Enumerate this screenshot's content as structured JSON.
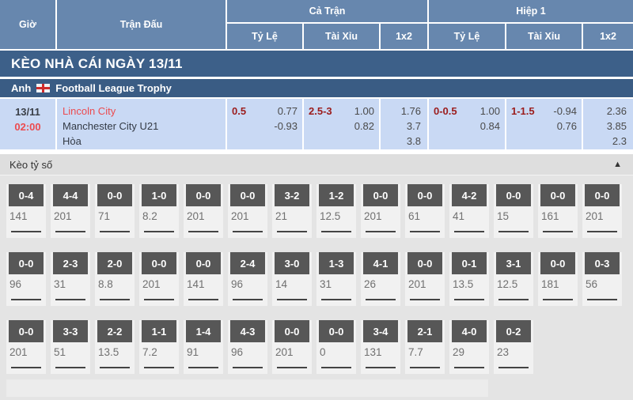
{
  "header": {
    "col_time": "Giờ",
    "col_match": "Trận Đấu",
    "group_full": "Cả Trận",
    "group_half": "Hiệp 1",
    "sub_handicap": "Tỷ Lệ",
    "sub_over_under": "Tài Xỉu",
    "sub_1x2": "1x2"
  },
  "banner": {
    "title": "KÈO NHÀ CÁI NGÀY 13/11"
  },
  "league": {
    "country": "Anh",
    "name": "Football League Trophy",
    "flag": "england-flag"
  },
  "match": {
    "date": "13/11",
    "time": "02:00",
    "home": "Lincoln City",
    "away": "Manchester City U21",
    "draw_label": "Hòa",
    "full": {
      "handicap": {
        "line": "0.5",
        "odds": [
          "0.77",
          "-0.93"
        ]
      },
      "over_under": {
        "line": "2.5-3",
        "odds": [
          "1.00",
          "0.82"
        ]
      },
      "one_x_two": [
        "1.76",
        "3.7",
        "3.8"
      ]
    },
    "half": {
      "handicap": {
        "line": "0-0.5",
        "odds": [
          "1.00",
          "0.84"
        ]
      },
      "over_under": {
        "line": "1-1.5",
        "odds": [
          "-0.94",
          "0.76"
        ]
      },
      "one_x_two": [
        "2.36",
        "3.85",
        "2.3"
      ]
    }
  },
  "score_section": {
    "title": "Kèo tỷ số",
    "collapse_icon": "▲",
    "rows": [
      [
        {
          "score": "0-4",
          "odds": "141"
        },
        {
          "score": "4-4",
          "odds": "201"
        },
        {
          "score": "0-0",
          "odds": "71"
        },
        {
          "score": "1-0",
          "odds": "8.2"
        },
        {
          "score": "0-0",
          "odds": "201"
        },
        {
          "score": "0-0",
          "odds": "201"
        },
        {
          "score": "3-2",
          "odds": "21"
        },
        {
          "score": "1-2",
          "odds": "12.5"
        },
        {
          "score": "0-0",
          "odds": "201"
        },
        {
          "score": "0-0",
          "odds": "61"
        },
        {
          "score": "4-2",
          "odds": "41"
        },
        {
          "score": "0-0",
          "odds": "15"
        },
        {
          "score": "0-0",
          "odds": "161"
        },
        {
          "score": "0-0",
          "odds": "201"
        }
      ],
      [
        {
          "score": "0-0",
          "odds": "96"
        },
        {
          "score": "2-3",
          "odds": "31"
        },
        {
          "score": "2-0",
          "odds": "8.8"
        },
        {
          "score": "0-0",
          "odds": "201"
        },
        {
          "score": "0-0",
          "odds": "141"
        },
        {
          "score": "2-4",
          "odds": "96"
        },
        {
          "score": "3-0",
          "odds": "14"
        },
        {
          "score": "1-3",
          "odds": "31"
        },
        {
          "score": "4-1",
          "odds": "26"
        },
        {
          "score": "0-0",
          "odds": "201"
        },
        {
          "score": "0-1",
          "odds": "13.5"
        },
        {
          "score": "3-1",
          "odds": "12.5"
        },
        {
          "score": "0-0",
          "odds": "181"
        },
        {
          "score": "0-3",
          "odds": "56"
        }
      ],
      [
        {
          "score": "0-0",
          "odds": "201"
        },
        {
          "score": "3-3",
          "odds": "51"
        },
        {
          "score": "2-2",
          "odds": "13.5"
        },
        {
          "score": "1-1",
          "odds": "7.2"
        },
        {
          "score": "1-4",
          "odds": "91"
        },
        {
          "score": "4-3",
          "odds": "96"
        },
        {
          "score": "0-0",
          "odds": "201"
        },
        {
          "score": "0-0",
          "odds": "0"
        },
        {
          "score": "3-4",
          "odds": "131"
        },
        {
          "score": "2-1",
          "odds": "7.7"
        },
        {
          "score": "4-0",
          "odds": "29"
        },
        {
          "score": "0-2",
          "odds": "23"
        }
      ]
    ]
  },
  "colors": {
    "header_bg": "#6787ae",
    "banner_bg": "#3d6089",
    "league_bg": "#3a5c84",
    "match_row_bg": "#c9d9f4",
    "accent_red": "#ec4b4f",
    "handicap_maroon": "#9b1c1c",
    "score_box_bg": "#575757",
    "section_bg": "#e4e4e4"
  }
}
